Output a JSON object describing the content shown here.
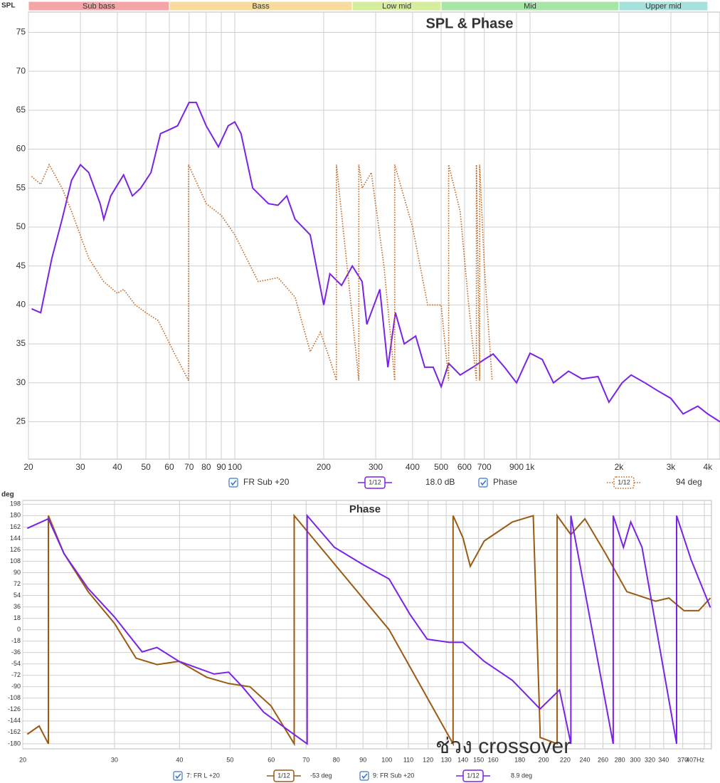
{
  "chart_data": [
    {
      "type": "line",
      "title": "SPL & Phase",
      "y_label": "SPL",
      "xscale": "log",
      "xlim": [
        20,
        4400
      ],
      "ylim": [
        20.2,
        77.6
      ],
      "xticks": [
        20,
        30,
        40,
        50,
        60,
        70,
        80,
        90,
        100,
        200,
        300,
        400,
        500,
        600,
        700,
        900,
        {
          "value": 1000,
          "label": "1k"
        },
        {
          "value": 2000,
          "label": "2k"
        },
        {
          "value": 3000,
          "label": "3k"
        },
        {
          "value": 4000,
          "label": "4k"
        }
      ],
      "yticks": [
        25,
        30,
        35,
        40,
        45,
        50,
        55,
        60,
        65,
        70,
        75
      ],
      "grid": true,
      "bands": [
        {
          "label": "Sub bass",
          "from": 20,
          "to": 60,
          "color": "#f4a5a8"
        },
        {
          "label": "Bass",
          "from": 60,
          "to": 250,
          "color": "#f8dc9c"
        },
        {
          "label": "Low mid",
          "from": 250,
          "to": 500,
          "color": "#d6ee9c"
        },
        {
          "label": "Mid",
          "from": 500,
          "to": 2000,
          "color": "#a6e6a6"
        },
        {
          "label": "Upper mid",
          "from": 2000,
          "to": 4000,
          "color": "#a6e2dc"
        }
      ],
      "series": [
        {
          "name": "FR Sub +20",
          "smoothing": "1/12",
          "readout": "18.0 dB",
          "color": "#7a22e6",
          "style": "solid",
          "x": [
            20.5,
            22,
            24,
            26,
            28,
            30,
            32,
            35,
            36,
            38,
            42,
            45,
            48,
            52,
            56,
            60,
            64,
            70,
            74,
            80,
            88,
            95,
            100,
            105,
            115,
            130,
            140,
            150,
            160,
            180,
            200,
            210,
            230,
            250,
            270,
            280,
            310,
            330,
            350,
            375,
            410,
            440,
            470,
            500,
            530,
            580,
            640,
            700,
            750,
            820,
            900,
            1000,
            1100,
            1200,
            1350,
            1500,
            1700,
            1850,
            2050,
            2200,
            2450,
            2700,
            3000,
            3300,
            3700,
            4000,
            4400
          ],
          "values": [
            39.5,
            39,
            46,
            51,
            56,
            58,
            57,
            53,
            51,
            54,
            56.7,
            54,
            55,
            57,
            62,
            62.5,
            63,
            66,
            66,
            63,
            60.3,
            63,
            63.5,
            62,
            55,
            53,
            52.8,
            54,
            51,
            49,
            40,
            44,
            42.5,
            45,
            43,
            37.5,
            42,
            32,
            39,
            35,
            36,
            32,
            32,
            29.5,
            32.5,
            31,
            32,
            33,
            33.7,
            32,
            30,
            33.8,
            33,
            30,
            31.5,
            30.5,
            30.8,
            27.5,
            30,
            31,
            30,
            29,
            28,
            26,
            27,
            26,
            25
          ]
        },
        {
          "name": "Phase",
          "smoothing": "1/12",
          "readout": "94 deg",
          "color": "#c0621a",
          "style": "dotted",
          "x": [
            20.5,
            22,
            23.5,
            26,
            28,
            32,
            36,
            40,
            42,
            46,
            50,
            55,
            62,
            69.7,
            69.7,
            80,
            90,
            100,
            120,
            140,
            160,
            180,
            195,
            210,
            221,
            221,
            240,
            263,
            263,
            270,
            290,
            320,
            348,
            348,
            400,
            450,
            480,
            500,
            530,
            530,
            580,
            620,
            658,
            658,
            675,
            675,
            700,
            744
          ],
          "values": [
            56.5,
            55.5,
            58,
            55,
            52,
            46,
            43,
            41.5,
            42,
            40,
            39,
            38,
            34,
            30.3,
            58,
            53,
            51.5,
            49,
            43,
            43.5,
            41,
            34,
            36.5,
            33,
            30.3,
            58,
            45,
            30.3,
            58,
            55,
            57,
            45,
            30.3,
            58,
            50,
            40,
            40,
            40,
            30.3,
            58,
            52,
            40,
            30.3,
            58,
            30.3,
            58,
            45,
            30.3
          ]
        }
      ]
    },
    {
      "type": "line",
      "title": "Phase",
      "y_label": "deg",
      "xscale": "log",
      "xlim": [
        20,
        420
      ],
      "ylim": [
        -188,
        204
      ],
      "xticks": [
        20,
        30,
        40,
        50,
        60,
        70,
        80,
        90,
        100,
        110,
        120,
        130,
        140,
        150,
        160,
        180,
        200,
        220,
        240,
        260,
        280,
        300,
        320,
        340,
        370,
        {
          "value": 407,
          "label": "407Hz"
        }
      ],
      "yticks": [
        198,
        180,
        162,
        144,
        126,
        108,
        90,
        72,
        54,
        36,
        18,
        0,
        -18,
        -36,
        -54,
        -72,
        -90,
        -108,
        -126,
        -144,
        -162,
        -180
      ],
      "grid": true,
      "annotation": "ช่วง crossover",
      "series": [
        {
          "name": "7: FR L +20",
          "smoothing": "1/12",
          "readout": "-53 deg",
          "color": "#9a5a12",
          "style": "solid",
          "x": [
            20.4,
            21.5,
            22.4,
            22.4,
            24.0,
            26.7,
            30.0,
            33.0,
            36.2,
            39.9,
            45.1,
            49.7,
            54.6,
            59.9,
            66.4,
            66.4,
            101,
            134,
            134,
            140,
            144.6,
            153.8,
            174.2,
            191,
            196.9,
            196.9,
            212.3,
            212.3,
            225.6,
            240,
            263,
            289,
            328,
            348,
            372,
            397,
            418
          ],
          "values": [
            -165,
            -152,
            -180,
            180,
            120,
            60,
            10,
            -45,
            -55,
            -50,
            -75,
            -85,
            -90,
            -120,
            -180,
            180,
            0,
            -180,
            180,
            145,
            100,
            140,
            170,
            180,
            -160,
            -170,
            -180,
            180,
            150,
            175,
            120,
            60,
            45,
            50,
            30,
            30,
            50
          ]
        },
        {
          "name": "9: FR Sub +20",
          "smoothing": "1/12",
          "readout": "8.9 deg",
          "color": "#7a22e6",
          "style": "solid",
          "x": [
            20.4,
            22.4,
            24.0,
            26.7,
            30.0,
            33.9,
            36.2,
            39.9,
            46.6,
            49.7,
            52.8,
            58.0,
            65.0,
            70.3,
            70.3,
            79.3,
            90.3,
            101,
            110.6,
            119.5,
            131.7,
            140,
            153.8,
            174.2,
            196.9,
            214.6,
            225.6,
            225.6,
            272,
            272,
            284.6,
            294,
            309,
            360,
            360,
            384,
            418
          ],
          "values": [
            160,
            175,
            120,
            65,
            20,
            -35,
            -28,
            -50,
            -70,
            -67,
            -90,
            -130,
            -160,
            -180,
            180,
            130,
            102,
            80,
            25,
            -15,
            -20,
            -20,
            -50,
            -80,
            -125,
            -95,
            -180,
            180,
            -180,
            180,
            130,
            170,
            130,
            -180,
            180,
            110,
            35
          ]
        }
      ]
    }
  ]
}
